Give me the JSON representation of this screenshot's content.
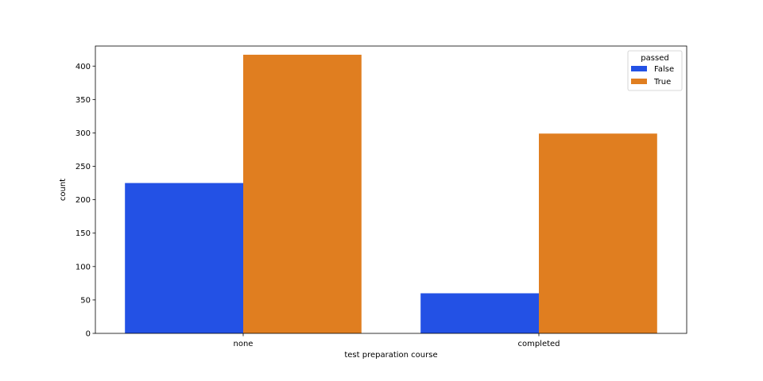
{
  "chart_data": {
    "type": "bar",
    "categories": [
      "none",
      "completed"
    ],
    "series": [
      {
        "name": "False",
        "values": [
          225,
          60
        ],
        "color": "#2351e5"
      },
      {
        "name": "True",
        "values": [
          417,
          299
        ],
        "color": "#e07e20"
      }
    ],
    "xlabel": "test preparation course",
    "ylabel": "count",
    "ylim": [
      0,
      430
    ],
    "yticks": [
      0,
      50,
      100,
      150,
      200,
      250,
      300,
      350,
      400
    ],
    "grid": false,
    "legend": {
      "title": "passed",
      "placement": "top-right"
    }
  }
}
